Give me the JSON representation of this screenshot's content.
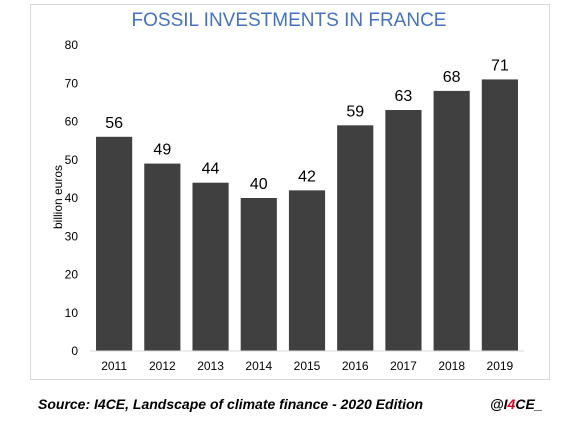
{
  "chart_data": {
    "type": "bar",
    "title": "FOSSIL INVESTMENTS IN FRANCE",
    "xlabel": "",
    "ylabel": "billion euros",
    "categories": [
      "2011",
      "2012",
      "2013",
      "2014",
      "2015",
      "2016",
      "2017",
      "2018",
      "2019"
    ],
    "values": [
      56,
      49,
      44,
      40,
      42,
      59,
      63,
      68,
      71
    ],
    "data_labels": [
      "56",
      "49",
      "44",
      "40",
      "42",
      "59",
      "63",
      "68",
      "71"
    ],
    "ylim": [
      0,
      80
    ],
    "yticks": [
      "0",
      "10",
      "20",
      "30",
      "40",
      "50",
      "60",
      "70",
      "80"
    ],
    "grid": false,
    "legend": "none",
    "bar_color": "#404040"
  },
  "footer": {
    "source": "Source: I4CE, Landscape of climate finance - 2020 Edition",
    "handle_prefix": "@I",
    "handle_accent": "4",
    "handle_suffix": "CE_",
    "accent_color": "#e3001b"
  }
}
